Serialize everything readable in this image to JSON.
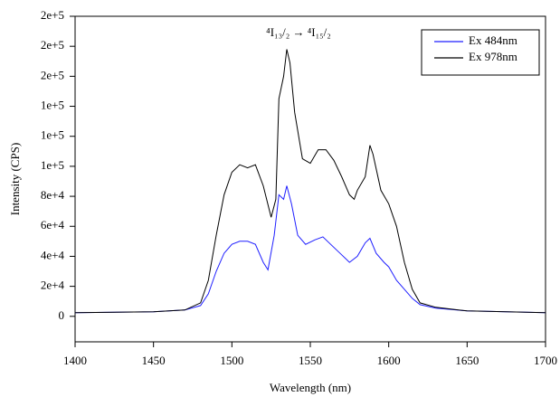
{
  "chart_data": {
    "type": "line",
    "x_label": "Wavelength  (nm)",
    "y_label": "Intensity (CPS)",
    "annotation": "⁴I₁₃/₂ → ⁴I₁₅/₂",
    "legend": "upper right",
    "xlim": [
      1400,
      1700
    ],
    "xticks": [
      1400,
      1450,
      1500,
      1550,
      1600,
      1650,
      1700
    ],
    "ylim": [
      -17000,
      200000
    ],
    "yticks": [
      0,
      {
        "value": 20000,
        "label": "2e+4"
      },
      {
        "value": 40000,
        "label": "4e+4"
      },
      {
        "value": 60000,
        "label": "6e+4"
      },
      {
        "value": 80000,
        "label": "8e+4"
      },
      {
        "value": 100000,
        "label": "1e+5"
      },
      {
        "value": 120000,
        "label": "1e+5"
      },
      {
        "value": 140000,
        "label": "1e+5"
      },
      {
        "value": 160000,
        "label": "2e+5"
      },
      {
        "value": 180000,
        "label": "2e+5"
      },
      {
        "value": 200000,
        "label": "2e+5"
      }
    ],
    "series": [
      {
        "name": "Ex 484nm",
        "color": "#1f1fff",
        "x": [
          1400,
          1450,
          1470,
          1480,
          1485,
          1490,
          1495,
          1500,
          1505,
          1510,
          1515,
          1520,
          1523,
          1527,
          1530,
          1533,
          1535,
          1538,
          1542,
          1547,
          1553,
          1558,
          1563,
          1570,
          1575,
          1580,
          1585,
          1588,
          1592,
          1597,
          1600,
          1605,
          1610,
          1615,
          1620,
          1630,
          1650,
          1700
        ],
        "values": [
          2400,
          3000,
          4200,
          7200,
          15000,
          30000,
          42000,
          48000,
          50000,
          50000,
          48000,
          36000,
          31000,
          54000,
          81000,
          78000,
          87000,
          75000,
          54000,
          48000,
          51000,
          53000,
          48000,
          41000,
          36000,
          40000,
          49000,
          52000,
          42000,
          36000,
          33000,
          24000,
          18000,
          12000,
          7800,
          5400,
          3600,
          2400
        ]
      },
      {
        "name": "Ex 978nm",
        "color": "#000000",
        "x": [
          1400,
          1450,
          1470,
          1480,
          1485,
          1490,
          1495,
          1500,
          1505,
          1510,
          1515,
          1520,
          1525,
          1528,
          1530,
          1533,
          1535,
          1537,
          1540,
          1545,
          1550,
          1555,
          1560,
          1565,
          1570,
          1575,
          1578,
          1580,
          1585,
          1588,
          1590,
          1595,
          1600,
          1605,
          1610,
          1615,
          1620,
          1630,
          1650,
          1700
        ],
        "values": [
          2400,
          3000,
          4200,
          9000,
          24000,
          54000,
          81000,
          96000,
          101000,
          99000,
          101000,
          87000,
          66000,
          78000,
          145000,
          160000,
          178000,
          169000,
          136000,
          105000,
          102000,
          111000,
          111000,
          104000,
          93000,
          81000,
          78000,
          84000,
          93000,
          114000,
          108000,
          84000,
          75000,
          60000,
          36000,
          18000,
          9000,
          6000,
          3600,
          2400
        ]
      }
    ]
  }
}
